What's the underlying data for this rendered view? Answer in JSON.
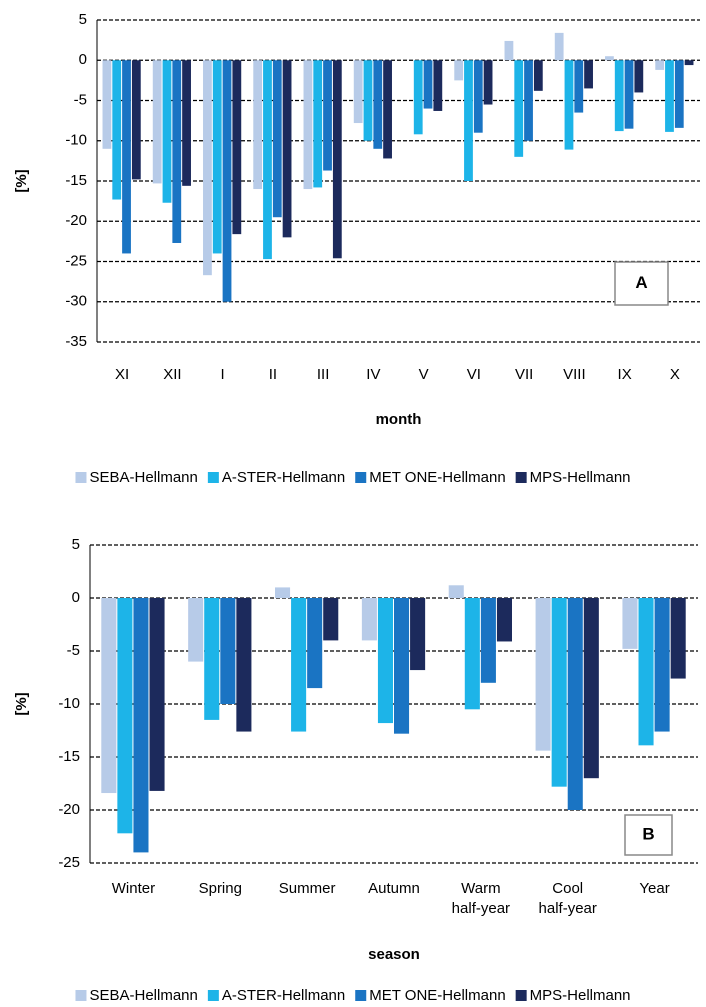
{
  "chart_data": [
    {
      "type": "bar",
      "xlabel": "month",
      "ylabel": "[%]",
      "annotation": "A",
      "grid": true,
      "legend": "bottom",
      "categories": [
        "XI",
        "XII",
        "I",
        "II",
        "III",
        "IV",
        "V",
        "VI",
        "VII",
        "VIII",
        "IX",
        "X"
      ],
      "ylim": [
        -35,
        5
      ],
      "yticks": [
        -35,
        -30,
        -25,
        -20,
        -15,
        -10,
        -5,
        0,
        5
      ],
      "series": [
        {
          "name": "SEBA-Hellmann",
          "color": "#b7cbe8",
          "values": [
            -11,
            -15.3,
            -26.7,
            -16,
            -16,
            -7.8,
            0,
            -2.5,
            2.4,
            3.4,
            0.5,
            -1.2
          ]
        },
        {
          "name": "A-STER-Hellmann",
          "color": "#1db4e8",
          "values": [
            -17.3,
            -17.7,
            -24,
            -24.7,
            -15.8,
            -10,
            -9.2,
            -15,
            -12,
            -11.1,
            -8.8,
            -8.9
          ]
        },
        {
          "name": "MET ONE-Hellmann",
          "color": "#1a74c3",
          "values": [
            -24,
            -22.7,
            -30,
            -19.5,
            -13.7,
            -11,
            -6,
            -9,
            -10,
            -6.5,
            -8.5,
            -8.4
          ]
        },
        {
          "name": "MPS-Hellmann",
          "color": "#1c2a5c",
          "values": [
            -14.8,
            -15.6,
            -21.6,
            -22,
            -24.6,
            -12.2,
            -6.3,
            -5.5,
            -3.8,
            -3.5,
            -4,
            -0.6
          ]
        }
      ]
    },
    {
      "type": "bar",
      "xlabel": "season",
      "ylabel": "[%]",
      "annotation": "B",
      "grid": true,
      "legend": "bottom",
      "categories": [
        "Winter",
        "Spring",
        "Summer",
        "Autumn",
        "Warm half-year",
        "Cool half-year",
        "Year"
      ],
      "ylim": [
        -25,
        5
      ],
      "yticks": [
        -25,
        -20,
        -15,
        -10,
        -5,
        0,
        5
      ],
      "series": [
        {
          "name": "SEBA-Hellmann",
          "color": "#b7cbe8",
          "values": [
            -18.4,
            -6,
            1,
            -4,
            1.2,
            -14.4,
            -4.8
          ]
        },
        {
          "name": "A-STER-Hellmann",
          "color": "#1db4e8",
          "values": [
            -22.2,
            -11.5,
            -12.6,
            -11.8,
            -10.5,
            -17.8,
            -13.9
          ]
        },
        {
          "name": "MET ONE-Hellmann",
          "color": "#1a74c3",
          "values": [
            -24,
            -10,
            -8.5,
            -12.8,
            -8,
            -20,
            -12.6
          ]
        },
        {
          "name": "MPS-Hellmann",
          "color": "#1c2a5c",
          "values": [
            -18.2,
            -12.6,
            -4,
            -6.8,
            -4.1,
            -17,
            -7.6
          ]
        }
      ]
    }
  ]
}
